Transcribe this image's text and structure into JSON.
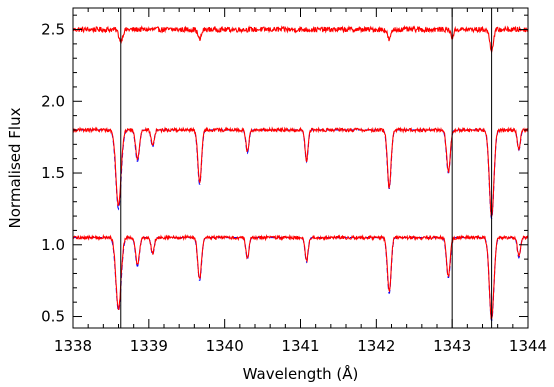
{
  "chart_data": {
    "type": "line",
    "title": "",
    "xlabel": "Wavelength (Å)",
    "ylabel": "Normalised Flux",
    "xlim": [
      1338.0,
      1344.0
    ],
    "ylim": [
      0.42,
      2.65
    ],
    "xticks": [
      1338,
      1339,
      1340,
      1341,
      1342,
      1343,
      1344
    ],
    "xtick_labels": [
      "1338",
      "1339",
      "1340",
      "1341",
      "1342",
      "1343",
      "1344"
    ],
    "yticks": [
      0.5,
      1.0,
      1.5,
      2.0,
      2.5
    ],
    "ytick_labels": [
      "0.5",
      "1.0",
      "1.5",
      "2.0",
      "2.5"
    ],
    "grid": false,
    "vertical_lines": [
      1338.63,
      1343.0,
      1343.52
    ],
    "series": [
      {
        "color": "#ff0000",
        "style": "solid",
        "continuum": 2.5,
        "noise": 0.018,
        "absorption_lines": [
          {
            "x": 1338.63,
            "depth": 0.08,
            "width": 0.025
          },
          {
            "x": 1339.67,
            "depth": 0.07,
            "width": 0.022
          },
          {
            "x": 1342.17,
            "depth": 0.07,
            "width": 0.022
          },
          {
            "x": 1343.0,
            "depth": 0.05,
            "width": 0.02
          },
          {
            "x": 1343.52,
            "depth": 0.14,
            "width": 0.025
          }
        ]
      },
      {
        "color": "#0000ff",
        "style": "dashed",
        "continuum": 1.8,
        "noise": 0.0,
        "absorption_lines": [
          {
            "x": 1338.6,
            "depth": 0.55,
            "width": 0.035
          },
          {
            "x": 1338.85,
            "depth": 0.22,
            "width": 0.025
          },
          {
            "x": 1339.05,
            "depth": 0.12,
            "width": 0.02
          },
          {
            "x": 1339.67,
            "depth": 0.38,
            "width": 0.025
          },
          {
            "x": 1340.3,
            "depth": 0.16,
            "width": 0.02
          },
          {
            "x": 1341.08,
            "depth": 0.22,
            "width": 0.02
          },
          {
            "x": 1342.17,
            "depth": 0.41,
            "width": 0.025
          },
          {
            "x": 1342.95,
            "depth": 0.3,
            "width": 0.025
          },
          {
            "x": 1343.52,
            "depth": 0.62,
            "width": 0.03
          },
          {
            "x": 1343.88,
            "depth": 0.14,
            "width": 0.02
          }
        ]
      },
      {
        "color": "#ff0000",
        "style": "solid",
        "continuum": 1.8,
        "noise": 0.012,
        "absorption_lines": [
          {
            "x": 1338.6,
            "depth": 0.53,
            "width": 0.033
          },
          {
            "x": 1338.85,
            "depth": 0.2,
            "width": 0.024
          },
          {
            "x": 1339.05,
            "depth": 0.11,
            "width": 0.02
          },
          {
            "x": 1339.67,
            "depth": 0.37,
            "width": 0.024
          },
          {
            "x": 1340.3,
            "depth": 0.15,
            "width": 0.02
          },
          {
            "x": 1341.08,
            "depth": 0.21,
            "width": 0.02
          },
          {
            "x": 1342.17,
            "depth": 0.4,
            "width": 0.024
          },
          {
            "x": 1342.95,
            "depth": 0.29,
            "width": 0.024
          },
          {
            "x": 1343.52,
            "depth": 0.6,
            "width": 0.03
          },
          {
            "x": 1343.88,
            "depth": 0.13,
            "width": 0.02
          }
        ]
      },
      {
        "color": "#0000ff",
        "style": "dashed",
        "continuum": 1.05,
        "noise": 0.0,
        "absorption_lines": [
          {
            "x": 1338.6,
            "depth": 0.51,
            "width": 0.035
          },
          {
            "x": 1338.85,
            "depth": 0.2,
            "width": 0.025
          },
          {
            "x": 1339.05,
            "depth": 0.12,
            "width": 0.02
          },
          {
            "x": 1339.67,
            "depth": 0.3,
            "width": 0.025
          },
          {
            "x": 1340.3,
            "depth": 0.15,
            "width": 0.02
          },
          {
            "x": 1341.08,
            "depth": 0.17,
            "width": 0.02
          },
          {
            "x": 1342.17,
            "depth": 0.39,
            "width": 0.025
          },
          {
            "x": 1342.95,
            "depth": 0.28,
            "width": 0.025
          },
          {
            "x": 1343.52,
            "depth": 0.58,
            "width": 0.03
          },
          {
            "x": 1343.88,
            "depth": 0.14,
            "width": 0.02
          }
        ]
      },
      {
        "color": "#ff0000",
        "style": "solid",
        "continuum": 1.05,
        "noise": 0.012,
        "absorption_lines": [
          {
            "x": 1338.6,
            "depth": 0.5,
            "width": 0.033
          },
          {
            "x": 1338.85,
            "depth": 0.19,
            "width": 0.024
          },
          {
            "x": 1339.05,
            "depth": 0.11,
            "width": 0.02
          },
          {
            "x": 1339.67,
            "depth": 0.29,
            "width": 0.024
          },
          {
            "x": 1340.3,
            "depth": 0.14,
            "width": 0.02
          },
          {
            "x": 1341.08,
            "depth": 0.16,
            "width": 0.02
          },
          {
            "x": 1342.17,
            "depth": 0.38,
            "width": 0.024
          },
          {
            "x": 1342.95,
            "depth": 0.27,
            "width": 0.024
          },
          {
            "x": 1343.52,
            "depth": 0.57,
            "width": 0.03
          },
          {
            "x": 1343.88,
            "depth": 0.13,
            "width": 0.02
          }
        ]
      }
    ]
  }
}
